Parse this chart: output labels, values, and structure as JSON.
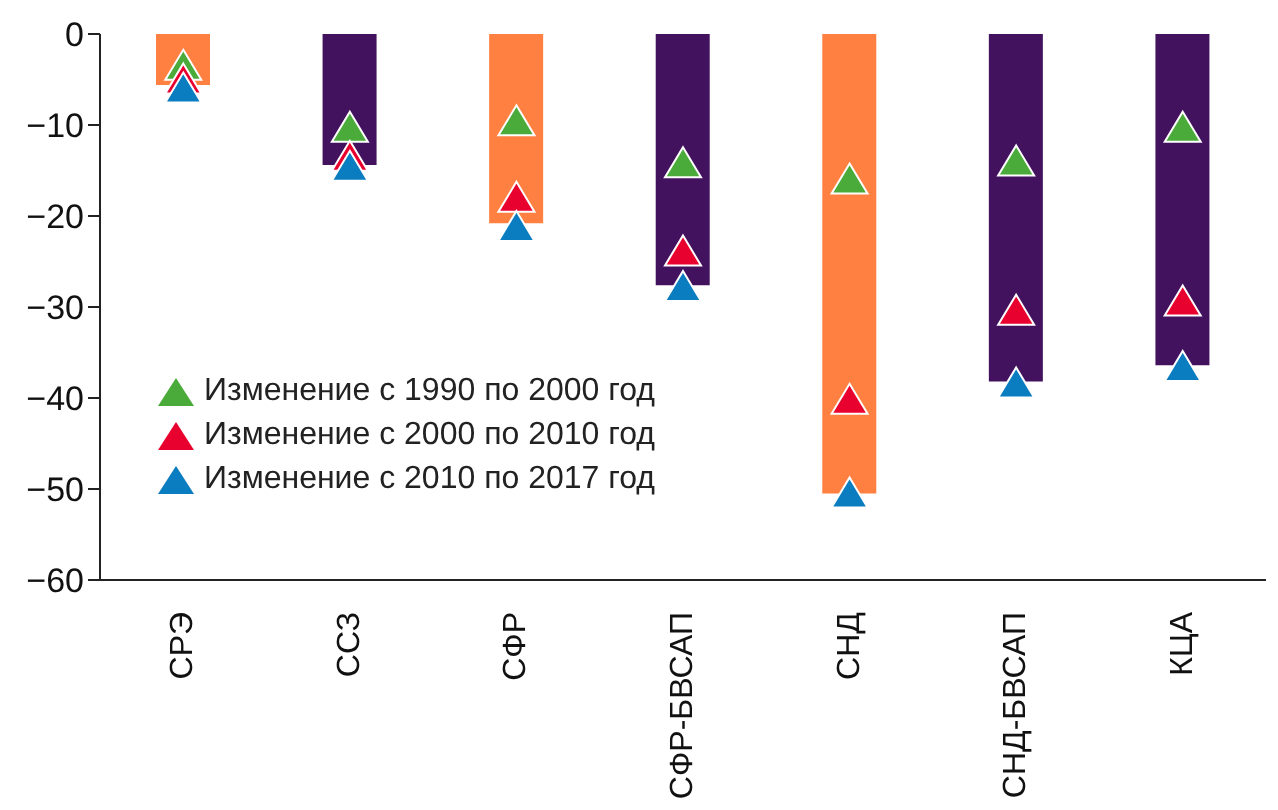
{
  "chart_data": {
    "type": "bar",
    "categories": [
      "СРЭ",
      "ССЗ",
      "СФР",
      "СФР-БВСАП",
      "СНД",
      "СНД-БВСАП",
      "КЦА"
    ],
    "values": [
      -5.6,
      -14.4,
      -20.8,
      -27.6,
      -50.5,
      -38.2,
      -36.4
    ],
    "colors": [
      "#ff8040",
      "#43125f",
      "#ff8040",
      "#43125f",
      "#ff8040",
      "#43125f",
      "#43125f"
    ],
    "series": [
      {
        "type": "scatter",
        "name": "Изменение с 1990 по 2000 год",
        "color": "#4aab3a",
        "values": [
          -3.5,
          -10.3,
          -9.6,
          -14.2,
          -16,
          -14,
          -10.3
        ]
      },
      {
        "type": "scatter",
        "name": "Изменение с 2000 по 2010 год",
        "color": "#e8002e",
        "values": [
          -5,
          -13.5,
          -18,
          -23.9,
          -40.2,
          -30.4,
          -29.4
        ]
      },
      {
        "type": "scatter",
        "name": "Изменение с 2010 по 2017 год",
        "color": "#0a7cc0",
        "values": [
          -6,
          -14.6,
          -21.2,
          -27.8,
          -50.5,
          -38.4,
          -36.6
        ]
      }
    ],
    "ylim": [
      -60,
      0
    ],
    "yticks": [
      0,
      -10,
      -20,
      -30,
      -40,
      -50,
      -60
    ],
    "legend": "bottom left",
    "marker": "triangle"
  }
}
